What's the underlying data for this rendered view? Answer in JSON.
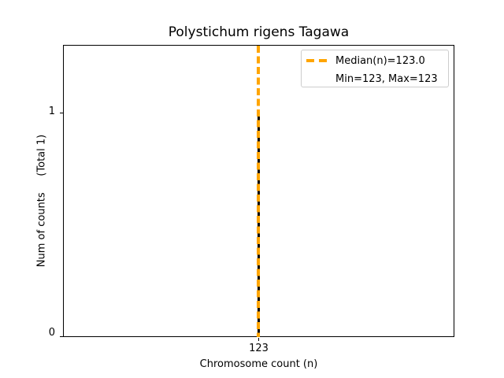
{
  "chart_data": {
    "type": "bar",
    "title": "Polystichum rigens Tagawa",
    "xlabel": "Chromosome count (n)",
    "ylabel": "Num of counts     (Total 1)",
    "categories": [
      123
    ],
    "values": [
      1
    ],
    "total_counts": 1,
    "median": 123.0,
    "min": 123,
    "max": 123,
    "x_tick_labels": [
      "123"
    ],
    "y_tick_labels": [
      "0",
      "1"
    ],
    "ylim": [
      0,
      1.3
    ],
    "grid": false,
    "legend_position": "upper right",
    "legend_entries": [
      "Median(n)=123.0",
      "Min=123, Max=123"
    ],
    "bar_color": "#000000",
    "median_line_color": "#FFA500",
    "median_line_style": "dashed",
    "legend_border_color": "#cccccc",
    "background_color": "#ffffff"
  }
}
